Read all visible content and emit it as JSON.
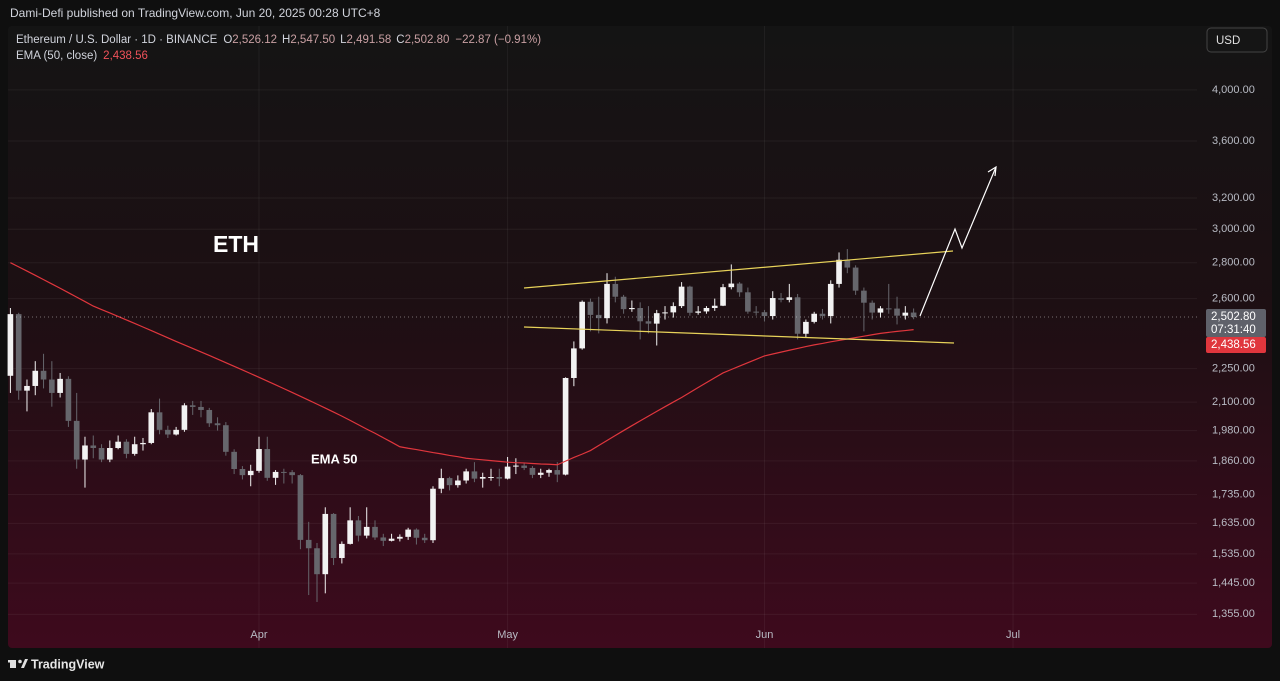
{
  "header": {
    "published": "Dami-Defi published on TradingView.com, Jun 20, 2025 00:28 UTC+8"
  },
  "chart_data": {
    "type": "candlestick",
    "title": "Ethereum / U.S. Dollar · 1D · BINANCE",
    "ohlc_legend": [
      {
        "key": "O",
        "value": "2,526.12"
      },
      {
        "key": "H",
        "value": "2,547.50"
      },
      {
        "key": "L",
        "value": "2,491.58"
      },
      {
        "key": "C",
        "value": "2,502.80"
      }
    ],
    "change": "−22.87 (−0.91%)",
    "currency": "USD",
    "open": [
      2217,
      2518,
      2150,
      2171,
      2240,
      2200,
      2140,
      2203,
      2020,
      1865,
      1920,
      1910,
      1865,
      1910,
      1935,
      1887,
      1925,
      1930,
      2056,
      1983,
      1964,
      1983,
      2086,
      2079,
      2066,
      2010,
      2002,
      1895,
      1829,
      1806,
      1822,
      1906,
      1796,
      1818,
      1817,
      1806,
      1580,
      1553,
      1472,
      1667,
      1522,
      1567,
      1645,
      1594,
      1623,
      1588,
      1577,
      1584,
      1590,
      1614,
      1587,
      1579,
      1756,
      1795,
      1769,
      1786,
      1820,
      1793,
      1799,
      1799,
      1793,
      1838,
      1842,
      1833,
      1807,
      1815,
      1825,
      1808,
      2207,
      2346,
      2583,
      2514,
      2497,
      2680,
      2610,
      2544,
      2550,
      2481,
      2469,
      2523,
      2527,
      2560,
      2665,
      2525,
      2532,
      2550,
      2562,
      2662,
      2682,
      2634,
      2531,
      2528,
      2508,
      2603,
      2593,
      2607,
      2418,
      2478,
      2520,
      2508,
      2680,
      2817,
      2772,
      2643,
      2578,
      2526,
      2548,
      2547,
      2510,
      2526.12
    ],
    "high": [
      2550,
      2525,
      2200,
      2285,
      2320,
      2285,
      2230,
      2215,
      2140,
      1955,
      1960,
      1925,
      1940,
      1960,
      1945,
      1955,
      1950,
      2070,
      2115,
      2000,
      1995,
      2095,
      2105,
      2105,
      2075,
      2035,
      2015,
      1905,
      1840,
      1845,
      1955,
      1955,
      1825,
      1830,
      1825,
      1810,
      1640,
      1570,
      1690,
      1670,
      1575,
      1690,
      1660,
      1690,
      1645,
      1600,
      1600,
      1598,
      1620,
      1618,
      1600,
      1765,
      1830,
      1800,
      1805,
      1830,
      1855,
      1815,
      1830,
      1830,
      1875,
      1870,
      1850,
      1840,
      1830,
      1830,
      1855,
      2210,
      2380,
      2590,
      2600,
      2610,
      2740,
      2720,
      2620,
      2590,
      2580,
      2560,
      2540,
      2560,
      2580,
      2690,
      2670,
      2560,
      2560,
      2600,
      2680,
      2790,
      2690,
      2660,
      2560,
      2540,
      2640,
      2630,
      2680,
      2625,
      2490,
      2530,
      2545,
      2700,
      2860,
      2880,
      2785,
      2660,
      2590,
      2560,
      2680,
      2610,
      2560,
      2547.5
    ],
    "low": [
      2140,
      2110,
      2060,
      2130,
      2160,
      2080,
      2120,
      1995,
      1830,
      1760,
      1870,
      1855,
      1855,
      1905,
      1870,
      1880,
      1900,
      1925,
      1965,
      1950,
      1960,
      1975,
      2045,
      2035,
      1995,
      1980,
      1880,
      1810,
      1790,
      1765,
      1815,
      1785,
      1770,
      1775,
      1775,
      1550,
      1410,
      1390,
      1415,
      1500,
      1505,
      1565,
      1575,
      1585,
      1580,
      1560,
      1575,
      1575,
      1580,
      1565,
      1570,
      1570,
      1740,
      1750,
      1760,
      1775,
      1780,
      1760,
      1785,
      1765,
      1790,
      1810,
      1825,
      1795,
      1795,
      1800,
      1780,
      1805,
      2170,
      2340,
      2430,
      2420,
      2470,
      2580,
      2520,
      2530,
      2390,
      2420,
      2360,
      2490,
      2500,
      2550,
      2510,
      2515,
      2520,
      2535,
      2560,
      2650,
      2610,
      2520,
      2510,
      2480,
      2490,
      2580,
      2580,
      2390,
      2400,
      2470,
      2490,
      2470,
      2660,
      2740,
      2620,
      2430,
      2490,
      2500,
      2520,
      2465,
      2490,
      2491.58
    ],
    "close": [
      2518,
      2150,
      2171,
      2240,
      2200,
      2140,
      2203,
      2020,
      1865,
      1920,
      1910,
      1865,
      1910,
      1935,
      1887,
      1925,
      1930,
      2056,
      1983,
      1964,
      1983,
      2086,
      2079,
      2066,
      2010,
      2002,
      1895,
      1829,
      1806,
      1822,
      1906,
      1796,
      1818,
      1817,
      1806,
      1580,
      1553,
      1472,
      1667,
      1522,
      1567,
      1645,
      1594,
      1623,
      1588,
      1577,
      1584,
      1590,
      1614,
      1587,
      1579,
      1756,
      1795,
      1769,
      1786,
      1820,
      1793,
      1799,
      1799,
      1793,
      1838,
      1842,
      1833,
      1807,
      1815,
      1825,
      1808,
      2207,
      2346,
      2583,
      2514,
      2497,
      2680,
      2610,
      2544,
      2550,
      2481,
      2469,
      2523,
      2527,
      2560,
      2665,
      2525,
      2532,
      2550,
      2562,
      2662,
      2682,
      2634,
      2531,
      2528,
      2508,
      2603,
      2593,
      2607,
      2418,
      2478,
      2520,
      2508,
      2680,
      2817,
      2772,
      2643,
      2578,
      2526,
      2548,
      2547,
      2510,
      2525.67,
      2502.8
    ],
    "up_color": "#f2f2f2",
    "down_color": "#66666c",
    "series": [
      {
        "name": "EMA (50, close)",
        "color": "#e0363d",
        "value_label": "2,438.56",
        "values": [
          2800,
          2776,
          2752,
          2728,
          2704,
          2680,
          2656,
          2632,
          2608,
          2584,
          2560,
          2542,
          2524,
          2506,
          2488,
          2470,
          2452,
          2434,
          2416,
          2398,
          2380,
          2363,
          2346,
          2329,
          2312,
          2295,
          2278,
          2261,
          2244,
          2227,
          2210,
          2193,
          2176,
          2159,
          2142,
          2125,
          2108,
          2091,
          2074,
          2057,
          2040,
          2022,
          2004,
          1986,
          1969,
          1951,
          1933,
          1915,
          1909,
          1904,
          1898,
          1892,
          1887,
          1881,
          1876,
          1870,
          1867,
          1864,
          1861,
          1858,
          1855,
          1853,
          1852,
          1850,
          1848,
          1847,
          1845,
          1859,
          1873,
          1886,
          1900,
          1920,
          1940,
          1960,
          1980,
          2000,
          2020,
          2040,
          2060,
          2080,
          2100,
          2120,
          2142,
          2164,
          2186,
          2208,
          2230,
          2246,
          2262,
          2278,
          2294,
          2310,
          2319,
          2328,
          2337,
          2346,
          2355,
          2363,
          2370,
          2378,
          2385,
          2392,
          2399,
          2406,
          2413,
          2420,
          2425,
          2430,
          2434,
          2438.56
        ]
      }
    ],
    "xlim": [
      -0.29,
      143.2
    ],
    "xticks": [
      {
        "value": 30,
        "label": "Apr"
      },
      {
        "value": 60,
        "label": "May"
      },
      {
        "value": 91,
        "label": "Jun"
      },
      {
        "value": 121,
        "label": "Jul"
      }
    ],
    "ylim": [
      1264,
      4564
    ],
    "log_scale": true,
    "yticks": [
      {
        "value": 1355,
        "label": "1,355.00"
      },
      {
        "value": 1445,
        "label": "1,445.00"
      },
      {
        "value": 1535,
        "label": "1,535.00"
      },
      {
        "value": 1635,
        "label": "1,635.00"
      },
      {
        "value": 1735,
        "label": "1,735.00"
      },
      {
        "value": 1860,
        "label": "1,860.00"
      },
      {
        "value": 1980,
        "label": "1,980.00"
      },
      {
        "value": 2100,
        "label": "2,100.00"
      },
      {
        "value": 2250,
        "label": "2,250.00"
      },
      {
        "value": 2600,
        "label": "2,600.00"
      },
      {
        "value": 2800,
        "label": "2,800.00"
      },
      {
        "value": 3000,
        "label": "3,000.00"
      },
      {
        "value": 3200,
        "label": "3,200.00"
      },
      {
        "value": 3600,
        "label": "3,600.00"
      },
      {
        "value": 4000,
        "label": "4,000.00"
      }
    ],
    "grid": true,
    "last_price_label": "2,502.80",
    "countdown": "07:31:40",
    "annotations": [
      {
        "text": "ETH"
      },
      {
        "text": "EMA 50"
      }
    ]
  },
  "footer": {
    "brand": "TradingView"
  }
}
